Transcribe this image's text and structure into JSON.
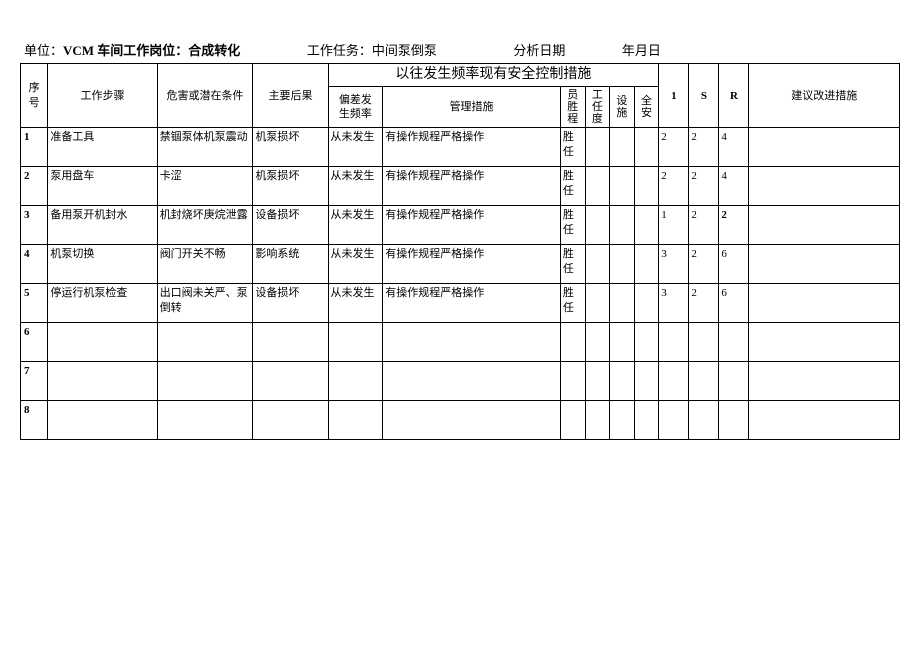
{
  "header": {
    "unit_label": "单位：",
    "unit_value": "VCM 车间工作岗位：合成转化",
    "task_label": "工作任务：",
    "task_value": "中间泵倒泵",
    "date_label": "分析日期",
    "date_value": "年月日"
  },
  "table_headers": {
    "seq": "序\n号",
    "step": "工作步骤",
    "hazard": "危害或潜在条件",
    "result": "主要后果",
    "group_freq_ctrl": "以往发生频率现有安全控制措施",
    "freq": "偏差发\n生频率",
    "mgmt": "管理措施",
    "emp": "员胜程",
    "task_level": "工任度",
    "facility": "设施",
    "safety": "全安",
    "col1": "1",
    "colS": "S",
    "colR": "R",
    "suggest": "建议改进措施"
  },
  "rows": [
    {
      "n": "1",
      "step": "准备工具",
      "hazard": "禁锢泵体机泵震动",
      "result": "机泵损坏",
      "freq": "从未发生",
      "mgmt": "有操作规程严格操作",
      "emp": "胜任",
      "v1": "2",
      "v2": "2",
      "v3": "4",
      "bold3": false
    },
    {
      "n": "2",
      "step": "泵用盘车",
      "hazard": "卡涩",
      "result": "机泵损坏",
      "freq": "从未发生",
      "mgmt": "有操作规程严格操作",
      "emp": "胜任",
      "v1": "2",
      "v2": "2",
      "v3": "4",
      "bold3": false
    },
    {
      "n": "3",
      "step": "备用泵开机封水",
      "hazard": "机封烧坏庚烷泄露",
      "result": "设备损坏",
      "freq": "从未发生",
      "mgmt": "有操作规程严格操作",
      "emp": "胜任",
      "v1": "1",
      "v2": "2",
      "v3": "2",
      "bold3": true
    },
    {
      "n": "4",
      "step": "机泵切换",
      "hazard": "阀门开关不畅",
      "result": "影响系统",
      "freq": "从未发生",
      "mgmt": "有操作规程严格操作",
      "emp": "胜任",
      "v1": "3",
      "v2": "2",
      "v3": "6",
      "bold3": false
    },
    {
      "n": "5",
      "step": "停运行机泵检查",
      "hazard": "出口阀未关严、泵倒转",
      "result": "设备损坏",
      "freq": "从未发生",
      "mgmt": "有操作规程严格操作",
      "emp": "胜任",
      "v1": "3",
      "v2": "2",
      "v3": "6",
      "bold3": false
    },
    {
      "n": "6",
      "step": "",
      "hazard": "",
      "result": "",
      "freq": "",
      "mgmt": "",
      "emp": "",
      "v1": "",
      "v2": "",
      "v3": "",
      "bold3": false
    },
    {
      "n": "7",
      "step": "",
      "hazard": "",
      "result": "",
      "freq": "",
      "mgmt": "",
      "emp": "",
      "v1": "",
      "v2": "",
      "v3": "",
      "bold3": false
    },
    {
      "n": "8",
      "step": "",
      "hazard": "",
      "result": "",
      "freq": "",
      "mgmt": "",
      "emp": "",
      "v1": "",
      "v2": "",
      "v3": "",
      "bold3": false
    }
  ]
}
